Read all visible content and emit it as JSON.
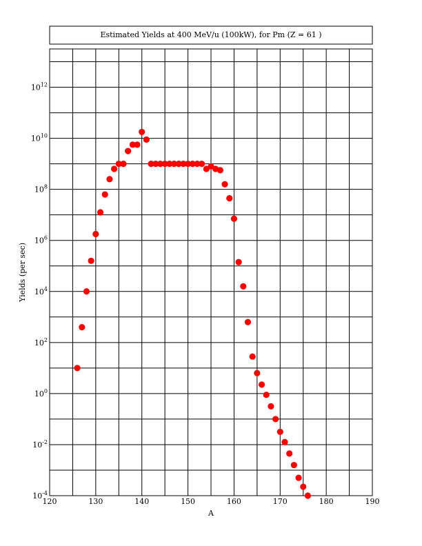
{
  "chart_data": {
    "type": "scatter",
    "title": "Estimated Yields at 400 MeV/u (100kW), for Pm (Z = 61 )",
    "xlabel": "A",
    "ylabel": "Yields (per sec)",
    "xlim": [
      120,
      190
    ],
    "ylim_log10": [
      -4,
      13.5
    ],
    "y_scale": "log",
    "grid": true,
    "x_ticks": [
      120,
      130,
      140,
      150,
      160,
      170,
      180,
      190
    ],
    "y_tick_exponents": [
      -4,
      -2,
      0,
      2,
      4,
      6,
      8,
      10,
      12
    ],
    "marker_color": "#ff0000",
    "x": [
      126,
      127,
      128,
      129,
      130,
      131,
      132,
      133,
      134,
      135,
      136,
      137,
      138,
      139,
      140,
      141,
      142,
      143,
      144,
      145,
      146,
      147,
      148,
      149,
      150,
      151,
      152,
      153,
      154,
      155,
      156,
      157,
      158,
      159,
      160,
      161,
      162,
      163,
      164,
      165,
      166,
      167,
      168,
      169,
      170,
      171,
      172,
      173,
      174,
      175,
      176
    ],
    "log10_y": [
      1.0,
      2.6,
      4.0,
      5.2,
      6.25,
      7.1,
      7.8,
      8.4,
      8.8,
      9.0,
      9.0,
      9.5,
      9.75,
      9.75,
      10.25,
      9.95,
      9.0,
      9.0,
      9.0,
      9.0,
      9.0,
      9.0,
      9.0,
      9.0,
      9.0,
      9.0,
      9.0,
      9.0,
      8.8,
      8.9,
      8.8,
      8.75,
      8.2,
      7.65,
      6.85,
      5.15,
      4.2,
      2.8,
      1.45,
      0.8,
      0.35,
      -0.05,
      -0.5,
      -1.0,
      -1.5,
      -1.9,
      -2.35,
      -2.8,
      -3.3,
      -3.65,
      -4.0
    ]
  }
}
